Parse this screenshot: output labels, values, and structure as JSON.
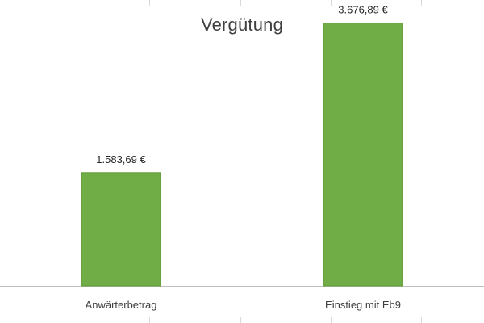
{
  "chart_data": {
    "type": "bar",
    "title": "Vergütung",
    "categories": [
      "Anwärterbetrag",
      "Einstieg mit Eb9"
    ],
    "values": [
      1583.69,
      3676.89
    ],
    "value_labels": [
      "1.583,69 €",
      "3.676,89 €"
    ],
    "xlabel": "",
    "ylabel": "",
    "ylim": [
      0,
      4000
    ],
    "grid": false,
    "legend": "none"
  },
  "colors": {
    "bar_fill": "#70ad47",
    "bar_stroke": "#5e9a3a",
    "axis": "#bfbfbf",
    "title": "#404040"
  }
}
